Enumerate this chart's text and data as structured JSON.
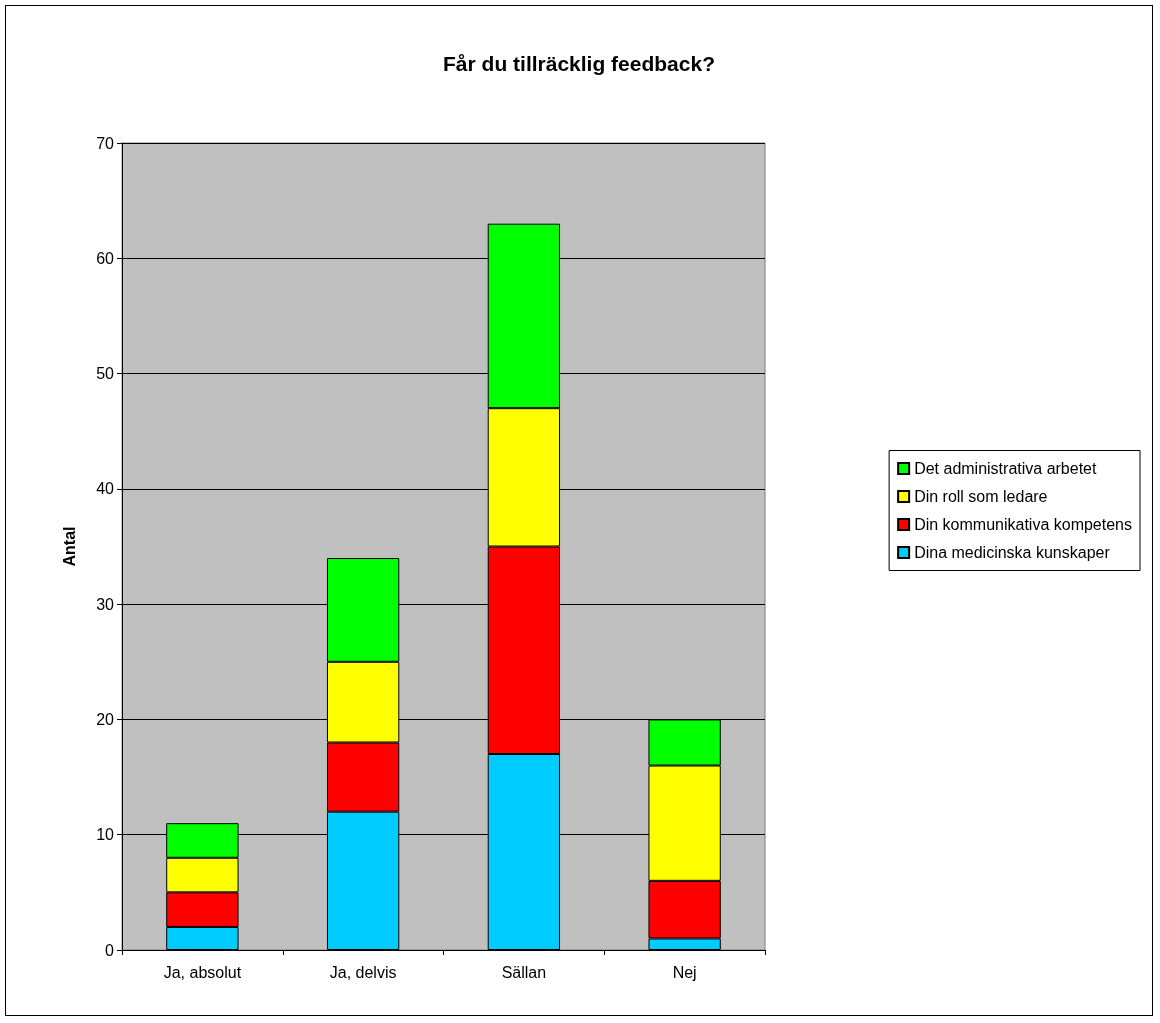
{
  "chart_data": {
    "type": "bar",
    "title": "Får du tillräcklig feedback?",
    "ylabel": "Antal",
    "categories": [
      "Ja, absolut",
      "Ja, delvis",
      "Sällan",
      "Nej"
    ],
    "stacked": true,
    "series": [
      {
        "name": "Dina medicinska kunskaper",
        "color": "#00ccff",
        "values": [
          2,
          12,
          17,
          1
        ]
      },
      {
        "name": "Din kommunikativa kompetens",
        "color": "#ff0000",
        "values": [
          3,
          6,
          18,
          5
        ]
      },
      {
        "name": "Din roll som ledare",
        "color": "#ffff00",
        "values": [
          3,
          7,
          12,
          10
        ]
      },
      {
        "name": "Det administrativa arbetet",
        "color": "#00ff00",
        "values": [
          3,
          9,
          16,
          4
        ]
      }
    ],
    "ylim": [
      0,
      70
    ],
    "yticks": [
      0,
      10,
      20,
      30,
      40,
      50,
      60,
      70
    ],
    "grid": "y",
    "legend": "right"
  }
}
